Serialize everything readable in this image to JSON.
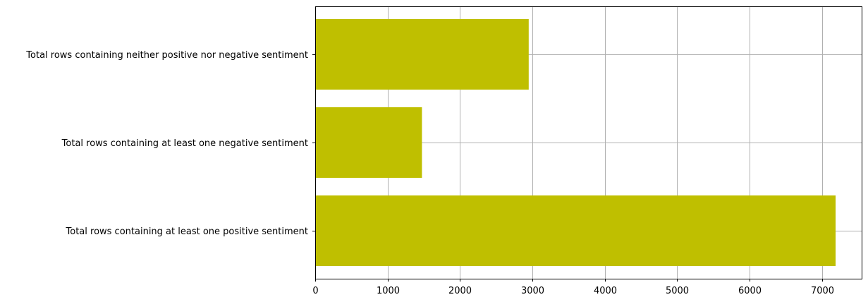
{
  "chart_data": {
    "type": "bar",
    "orientation": "horizontal",
    "categories": [
      "Total rows containing at least one positive sentiment",
      "Total rows containing at least one negative sentiment",
      "Total rows containing neither positive nor negative sentiment"
    ],
    "values": [
      7190,
      1475,
      2950
    ],
    "title": "",
    "xlabel": "",
    "ylabel": "",
    "xlim": [
      0,
      7550
    ],
    "xticks": [
      "0",
      "1000",
      "2000",
      "3000",
      "4000",
      "5000",
      "6000",
      "7000"
    ],
    "grid": true,
    "bar_color": "#bfbf00",
    "grid_color": "#b0b0b0"
  }
}
